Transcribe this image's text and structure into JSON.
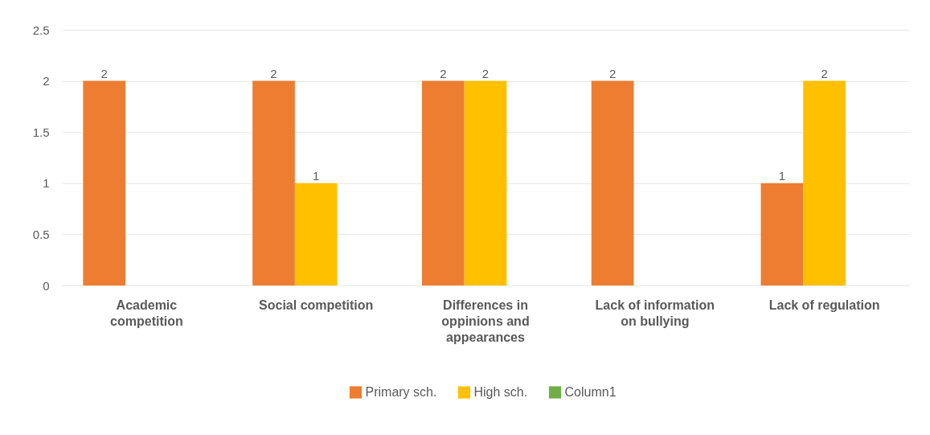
{
  "chart_data": {
    "type": "bar",
    "categories": [
      "Academic competition",
      "Social competition",
      "Differences in oppinions and appearances",
      "Lack of information on bullying",
      "Lack of regulation"
    ],
    "series": [
      {
        "name": "Primary sch.",
        "color": "#ed7d31",
        "values": [
          2,
          2,
          2,
          2,
          1
        ]
      },
      {
        "name": "High sch.",
        "color": "#ffc000",
        "values": [
          null,
          1,
          2,
          null,
          2
        ]
      },
      {
        "name": "Column1",
        "color": "#70ad47",
        "values": [
          null,
          null,
          null,
          null,
          null
        ]
      }
    ],
    "ylim": [
      0,
      2.5
    ],
    "yticks": [
      0,
      0.5,
      1,
      1.5,
      2,
      2.5
    ],
    "grid": "y",
    "legend": "bottom",
    "data_labels": true
  }
}
